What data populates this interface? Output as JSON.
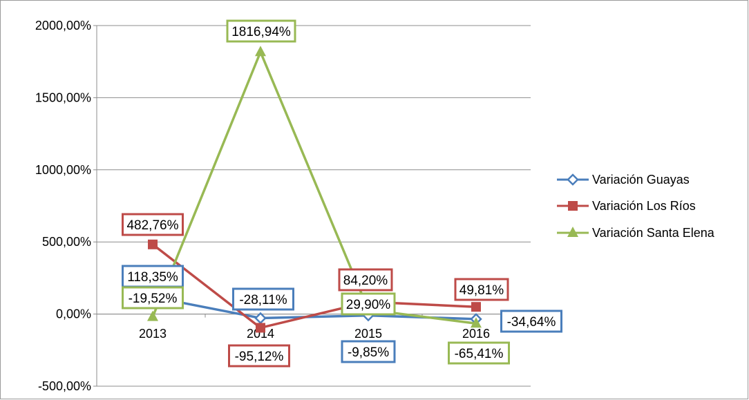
{
  "chart_data": {
    "type": "line",
    "title": "",
    "xlabel": "",
    "ylabel": "",
    "categories": [
      "2013",
      "2014",
      "2015",
      "2016"
    ],
    "ylim": [
      -500,
      2000
    ],
    "yticks": [
      "2000,00%",
      "1500,00%",
      "1000,00%",
      "500,00%",
      "0,00%",
      "-500,00%"
    ],
    "ytick_values": [
      2000,
      1500,
      1000,
      500,
      0,
      -500
    ],
    "grid": true,
    "legend_position": "right",
    "series": [
      {
        "name": "Variación Guayas",
        "color": "#4a7ebb",
        "marker": "diamond-open",
        "values": [
          118.35,
          -28.11,
          -9.85,
          -34.64
        ],
        "labels": [
          "118,35%",
          "-28,11%",
          "-9,85%",
          "-34,64%"
        ]
      },
      {
        "name": "Variación Los Ríos",
        "color": "#be4b48",
        "marker": "square",
        "values": [
          482.76,
          -95.12,
          84.2,
          49.81
        ],
        "labels": [
          "482,76%",
          "-95,12%",
          "84,20%",
          "49,81%"
        ]
      },
      {
        "name": "Variación Santa Elena",
        "color": "#98b954",
        "marker": "triangle",
        "values": [
          -19.52,
          1816.94,
          29.9,
          -65.41
        ],
        "labels": [
          "-19,52%",
          "1816,94%",
          "29,90%",
          "-65,41%"
        ]
      }
    ]
  }
}
